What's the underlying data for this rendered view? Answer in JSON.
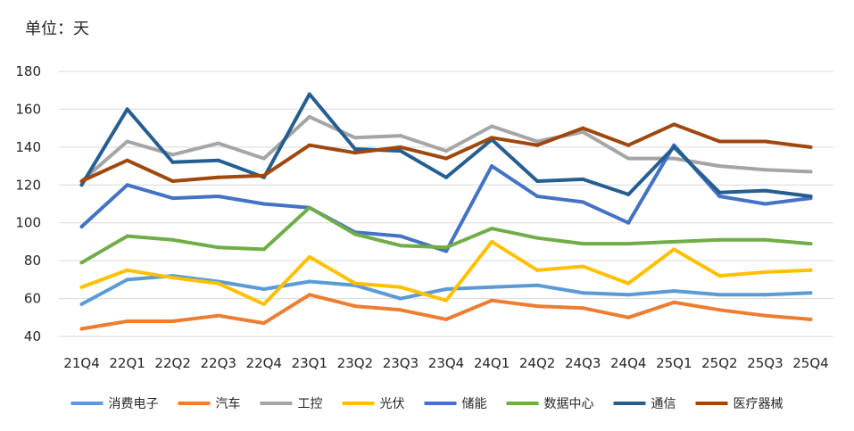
{
  "chart_data": {
    "type": "line",
    "unit_label": "单位：天",
    "categories": [
      "21Q4",
      "22Q1",
      "22Q2",
      "22Q3",
      "22Q4",
      "23Q1",
      "23Q2",
      "23Q3",
      "23Q4",
      "24Q1",
      "24Q2",
      "24Q3",
      "24Q4",
      "25Q1",
      "25Q2",
      "25Q3",
      "25Q4"
    ],
    "ylim": [
      40,
      180
    ],
    "yticks": [
      40,
      60,
      80,
      100,
      120,
      140,
      160,
      180
    ],
    "grid": true,
    "legend_position": "bottom",
    "series": [
      {
        "name": "消费电子",
        "color": "#5b9bd5",
        "values": [
          57,
          70,
          72,
          69,
          65,
          69,
          67,
          60,
          65,
          66,
          67,
          63,
          62,
          64,
          62,
          62,
          63
        ]
      },
      {
        "name": "汽车",
        "color": "#ed7d31",
        "values": [
          44,
          48,
          48,
          51,
          47,
          62,
          56,
          54,
          49,
          59,
          56,
          55,
          50,
          58,
          54,
          51,
          49
        ]
      },
      {
        "name": "工控",
        "color": "#a5a5a5",
        "values": [
          122,
          143,
          136,
          142,
          134,
          156,
          145,
          146,
          138,
          151,
          143,
          148,
          134,
          134,
          130,
          128,
          127
        ]
      },
      {
        "name": "光伏",
        "color": "#ffc000",
        "values": [
          66,
          75,
          71,
          68,
          57,
          82,
          68,
          66,
          59,
          90,
          75,
          77,
          68,
          86,
          72,
          74,
          75
        ]
      },
      {
        "name": "储能",
        "color": "#4472c4",
        "values": [
          98,
          120,
          113,
          114,
          110,
          108,
          95,
          93,
          85,
          130,
          114,
          111,
          100,
          141,
          114,
          110,
          113
        ]
      },
      {
        "name": "数据中心",
        "color": "#70ad47",
        "values": [
          79,
          93,
          91,
          87,
          86,
          108,
          94,
          88,
          87,
          97,
          92,
          89,
          89,
          90,
          91,
          91,
          89
        ]
      },
      {
        "name": "通信",
        "color": "#255e91",
        "values": [
          120,
          160,
          132,
          133,
          124,
          168,
          139,
          138,
          124,
          144,
          122,
          123,
          115,
          140,
          116,
          117,
          114
        ]
      },
      {
        "name": "医疗器械",
        "color": "#9e480e",
        "values": [
          122,
          133,
          122,
          124,
          125,
          141,
          137,
          140,
          134,
          145,
          141,
          150,
          141,
          152,
          143,
          143,
          140
        ]
      }
    ]
  }
}
